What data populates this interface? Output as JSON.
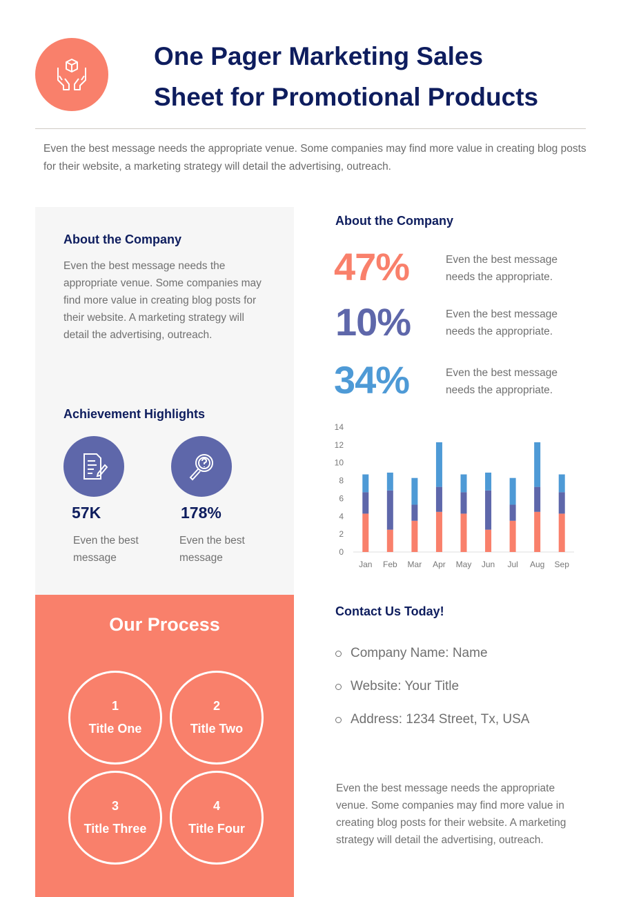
{
  "header": {
    "title_line1": "One Pager Marketing Sales",
    "title_line2": "Sheet for Promotional Products",
    "logo_icon": "hands-holding-box-icon"
  },
  "intro": "Even the best message needs the appropriate venue. Some companies may find more value in creating blog posts for their website, a marketing strategy will detail the advertising, outreach.",
  "about_left": {
    "heading": "About the Company",
    "text": "Even the best message needs the appropriate venue. Some companies may find more value in creating blog posts for their website. A marketing strategy will detail the advertising, outreach."
  },
  "achievements": {
    "heading": "Achievement Highlights",
    "items": [
      {
        "icon": "document-pen-icon",
        "value": "57K",
        "text": "Even the best message"
      },
      {
        "icon": "magnifier-question-icon",
        "value": "178%",
        "text": "Even the best message"
      }
    ]
  },
  "process": {
    "heading": "Our Process",
    "steps": [
      {
        "num": "1",
        "title": "Title One"
      },
      {
        "num": "2",
        "title": "Title Two"
      },
      {
        "num": "3",
        "title": "Title Three"
      },
      {
        "num": "4",
        "title": "Title Four"
      }
    ]
  },
  "about_right": {
    "heading": "About the Company",
    "stats": [
      {
        "value": "47%",
        "text": "Even the best message needs the appropriate.",
        "color": "#F9806B"
      },
      {
        "value": "10%",
        "text": "Even the best message needs the appropriate.",
        "color": "#5E67AA"
      },
      {
        "value": "34%",
        "text": "Even the best message needs the appropriate.",
        "color": "#4E9AD6"
      }
    ]
  },
  "chart_data": {
    "type": "bar",
    "stacked": true,
    "categories": [
      "Jan",
      "Feb",
      "Mar",
      "Apr",
      "May",
      "Jun",
      "Jul",
      "Aug",
      "Sep"
    ],
    "series": [
      {
        "values": [
          4.3,
          2.5,
          3.5,
          4.5,
          4.3,
          2.5,
          3.5,
          4.5,
          4.3
        ],
        "color": "#F9806B"
      },
      {
        "values": [
          2.4,
          4.4,
          1.8,
          2.8,
          2.4,
          4.4,
          1.8,
          2.8,
          2.4
        ],
        "color": "#5E67AA"
      },
      {
        "values": [
          2,
          2,
          3,
          5,
          2,
          2,
          3,
          5,
          2
        ],
        "color": "#4E9AD6"
      }
    ],
    "yticks": [
      "0",
      "2",
      "4",
      "6",
      "8",
      "10",
      "12",
      "14"
    ],
    "ylim": [
      0,
      14
    ],
    "grid": false,
    "legend": "none"
  },
  "contact": {
    "heading": "Contact Us Today!",
    "items": [
      "Company Name: Name",
      "Website: Your Title",
      "Address: 1234 Street, Tx, USA"
    ],
    "text": "Even the best message needs the appropriate venue. Some companies may find more value in creating blog posts for their website. A marketing strategy will detail the advertising, outreach."
  }
}
